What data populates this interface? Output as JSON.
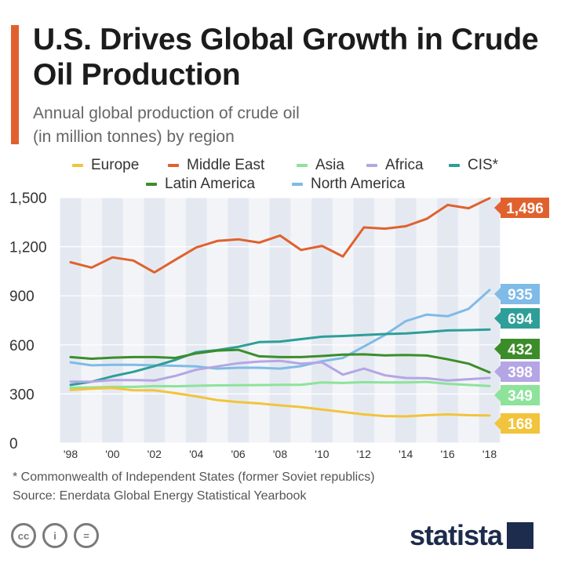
{
  "title": "U.S. Drives Global Growth in Crude Oil Production",
  "subtitle_line1": "Annual global production of crude oil",
  "subtitle_line2": "(in million tonnes) by region",
  "footnote": "* Commonwealth of Independent States (former Soviet republics)",
  "source": "Source: Enerdata Global Energy Statistical Yearbook",
  "brand": "statista",
  "legend": [
    {
      "label": "Europe",
      "color": "#f2c43c"
    },
    {
      "label": "Middle East",
      "color": "#e0612e"
    },
    {
      "label": "Asia",
      "color": "#8de39a"
    },
    {
      "label": "Africa",
      "color": "#b4a6e4"
    },
    {
      "label": "CIS*",
      "color": "#2e9e98"
    },
    {
      "label": "Latin America",
      "color": "#3c8d2a"
    },
    {
      "label": "North America",
      "color": "#7fbbe6"
    }
  ],
  "chart_data": {
    "type": "line",
    "title": "U.S. Drives Global Growth in Crude Oil Production",
    "subtitle": "Annual global production of crude oil (in million tonnes) by region",
    "x": [
      1998,
      1999,
      2000,
      2001,
      2002,
      2003,
      2004,
      2005,
      2006,
      2007,
      2008,
      2009,
      2010,
      2011,
      2012,
      2013,
      2014,
      2015,
      2016,
      2017,
      2018
    ],
    "xtick_values": [
      1998,
      2000,
      2002,
      2004,
      2006,
      2008,
      2010,
      2012,
      2014,
      2016,
      2018
    ],
    "xtick_labels": [
      "'98",
      "'00",
      "'02",
      "'04",
      "'06",
      "'08",
      "'10",
      "'12",
      "'14",
      "'16",
      "'18"
    ],
    "ylim": [
      0,
      1500
    ],
    "yticks": [
      0,
      300,
      600,
      900,
      1200,
      1500
    ],
    "ytick_labels": [
      "0",
      "300",
      "600",
      "900",
      "1,200",
      "1,500"
    ],
    "series": [
      {
        "name": "Middle East",
        "color": "#e0612e",
        "end_label": "1,496",
        "values": [
          1105,
          1072,
          1135,
          1115,
          1043,
          1120,
          1195,
          1235,
          1245,
          1225,
          1268,
          1180,
          1205,
          1140,
          1318,
          1310,
          1325,
          1370,
          1455,
          1435,
          1496
        ]
      },
      {
        "name": "North America",
        "color": "#7fbbe6",
        "end_label": "935",
        "values": [
          493,
          475,
          478,
          478,
          475,
          472,
          468,
          455,
          460,
          460,
          455,
          470,
          500,
          520,
          590,
          660,
          745,
          785,
          775,
          820,
          935
        ]
      },
      {
        "name": "CIS*",
        "color": "#2e9e98",
        "end_label": "694",
        "values": [
          355,
          375,
          408,
          435,
          470,
          508,
          555,
          568,
          588,
          617,
          620,
          635,
          650,
          654,
          660,
          666,
          670,
          678,
          688,
          690,
          694
        ]
      },
      {
        "name": "Latin America",
        "color": "#3c8d2a",
        "end_label": "432",
        "values": [
          525,
          515,
          522,
          525,
          525,
          520,
          548,
          565,
          570,
          530,
          525,
          525,
          532,
          540,
          542,
          536,
          538,
          535,
          512,
          485,
          432
        ]
      },
      {
        "name": "Africa",
        "color": "#b4a6e4",
        "end_label": "398",
        "values": [
          375,
          375,
          385,
          385,
          382,
          410,
          448,
          468,
          488,
          498,
          502,
          485,
          493,
          418,
          455,
          414,
          398,
          396,
          382,
          390,
          398
        ]
      },
      {
        "name": "Asia",
        "color": "#8de39a",
        "end_label": "349",
        "values": [
          338,
          340,
          343,
          343,
          348,
          347,
          350,
          352,
          353,
          354,
          356,
          356,
          370,
          367,
          372,
          370,
          370,
          374,
          362,
          355,
          349
        ]
      },
      {
        "name": "Europe",
        "color": "#f2c43c",
        "end_label": "168",
        "values": [
          325,
          332,
          337,
          322,
          322,
          305,
          285,
          262,
          250,
          242,
          230,
          220,
          205,
          190,
          175,
          165,
          163,
          170,
          175,
          170,
          168
        ]
      }
    ],
    "legend_position": "top",
    "grid": true
  }
}
